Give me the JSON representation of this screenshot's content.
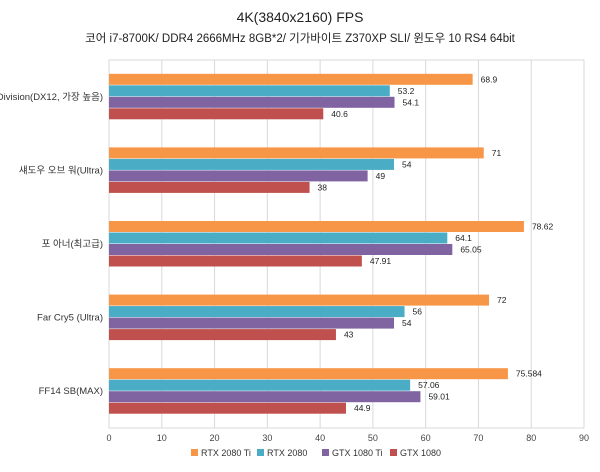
{
  "chart_data": {
    "type": "bar",
    "orientation": "horizontal",
    "title": "4K(3840x2160) FPS",
    "subtitle": "코어 i7-8700K/ DDR4 2666MHz 8GB*2/ 기가바이트 Z370XP SLI/ 윈도우 10 RS4 64bit",
    "categories": [
      "Division(DX12, 가장 높음)",
      "섀도우 오브 워(Ultra)",
      "포 아너(최고급)",
      "Far Cry5 (Ultra)",
      "FF14 SB(MAX)"
    ],
    "series": [
      {
        "name": "RTX 2080 Ti",
        "color": "#F79646",
        "values": [
          68.9,
          71,
          78.62,
          72,
          75.584
        ],
        "labels": [
          "68.9",
          "71",
          "78.62",
          "72",
          "75.584"
        ]
      },
      {
        "name": "RTX 2080",
        "color": "#4BACC6",
        "values": [
          53.2,
          54,
          64.1,
          56,
          57.06
        ],
        "labels": [
          "53.2",
          "54",
          "64.1",
          "56",
          "57.06"
        ]
      },
      {
        "name": "GTX 1080 Ti",
        "color": "#8064A2",
        "values": [
          54.1,
          49,
          65.05,
          54,
          59.01
        ],
        "labels": [
          "54.1",
          "49",
          "65.05",
          "54",
          "59.01"
        ]
      },
      {
        "name": "GTX 1080",
        "color": "#C0504D",
        "values": [
          40.6,
          38,
          47.91,
          43,
          44.9
        ],
        "labels": [
          "40.6",
          "38",
          "47.91",
          "43",
          "44.9"
        ]
      }
    ],
    "xlim": [
      0,
      90
    ],
    "xticks": [
      "0",
      "10",
      "20",
      "30",
      "40",
      "50",
      "60",
      "70",
      "80",
      "90"
    ],
    "grid": true,
    "legend": "bottom"
  }
}
